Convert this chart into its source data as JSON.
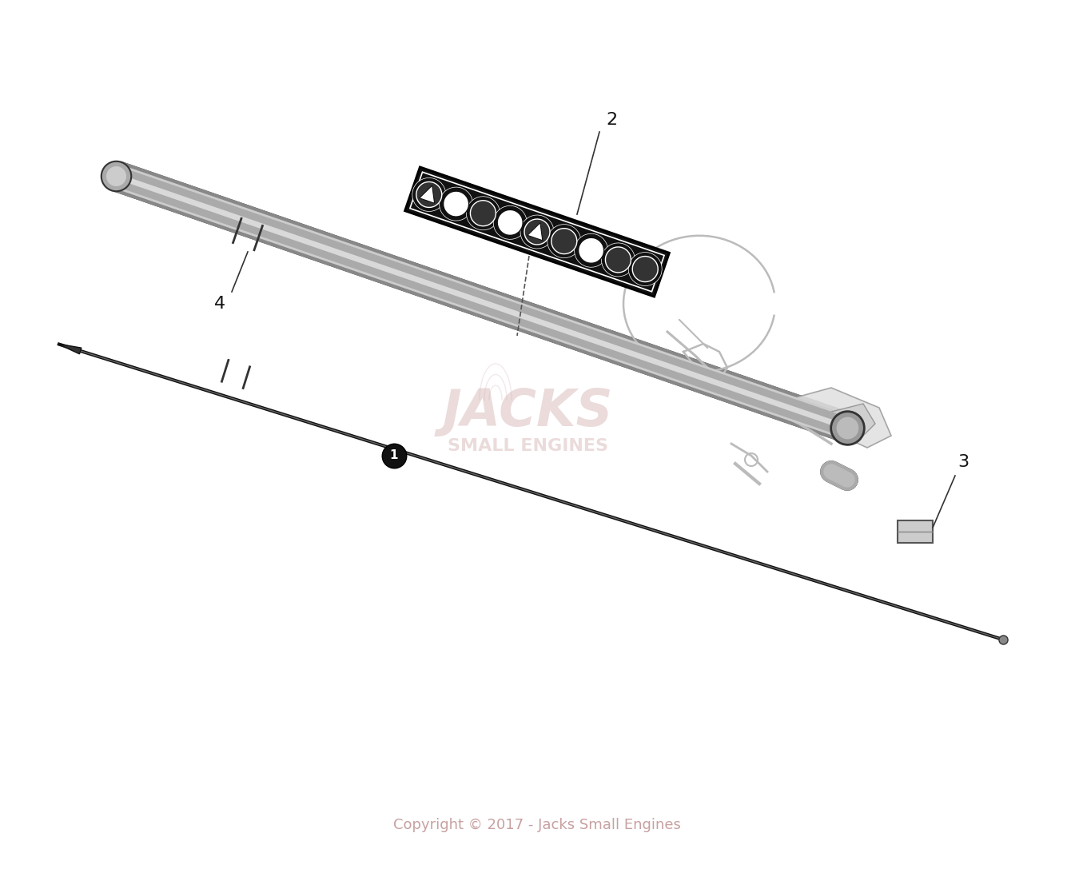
{
  "background_color": "#ffffff",
  "copyright_text": "Copyright © 2017 - Jacks Small Engines",
  "copyright_color": "#c8a0a0",
  "copyright_fontsize": 13,
  "pipe_color": "#555555",
  "outline_color": "#333333",
  "light_color": "#aaaaaa",
  "shaft_color": "#111111",
  "wm_color": "#d4b0b0",
  "wm_alpha": 0.45,
  "part_label_fontsize": 16,
  "label_strip_color": "#111111",
  "handle_color": "#bbbbbb"
}
